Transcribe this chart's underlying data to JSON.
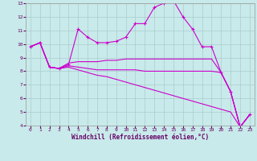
{
  "xlabel": "Windchill (Refroidissement éolien,°C)",
  "bg_color": "#c8eaea",
  "line_color": "#cc00cc",
  "grid_color": "#aacccc",
  "xlim": [
    -0.5,
    23.5
  ],
  "ylim": [
    4,
    13
  ],
  "yticks": [
    4,
    5,
    6,
    7,
    8,
    9,
    10,
    11,
    12,
    13
  ],
  "xticks": [
    0,
    1,
    2,
    3,
    4,
    5,
    6,
    7,
    8,
    9,
    10,
    11,
    12,
    13,
    14,
    15,
    16,
    17,
    18,
    19,
    20,
    21,
    22,
    23
  ],
  "curve1_x": [
    0,
    1,
    2,
    3,
    4,
    5,
    6,
    7,
    8,
    9,
    10,
    11,
    12,
    13,
    14,
    15,
    16,
    17,
    18,
    19,
    20,
    21,
    22,
    23
  ],
  "curve1_y": [
    9.8,
    10.1,
    8.3,
    8.2,
    8.5,
    11.1,
    10.5,
    10.1,
    10.1,
    10.2,
    10.5,
    11.5,
    11.5,
    12.7,
    13.0,
    13.2,
    12.0,
    11.1,
    9.8,
    9.8,
    7.9,
    6.5,
    3.9,
    4.8
  ],
  "curve2_x": [
    0,
    1,
    2,
    3,
    4,
    5,
    6,
    7,
    8,
    9,
    10,
    11,
    12,
    13,
    14,
    15,
    16,
    17,
    18,
    19,
    20,
    21,
    22,
    23
  ],
  "curve2_y": [
    9.8,
    10.1,
    8.3,
    8.2,
    8.6,
    8.7,
    8.7,
    8.7,
    8.8,
    8.8,
    8.9,
    8.9,
    8.9,
    8.9,
    8.9,
    8.9,
    8.9,
    8.9,
    8.9,
    8.9,
    7.9,
    6.5,
    3.9,
    4.8
  ],
  "curve3_x": [
    0,
    1,
    2,
    3,
    4,
    5,
    6,
    7,
    8,
    9,
    10,
    11,
    12,
    13,
    14,
    15,
    16,
    17,
    18,
    19,
    20,
    21,
    22,
    23
  ],
  "curve3_y": [
    9.8,
    10.1,
    8.3,
    8.2,
    8.4,
    8.3,
    8.2,
    8.1,
    8.1,
    8.1,
    8.1,
    8.1,
    8.0,
    8.0,
    8.0,
    8.0,
    8.0,
    8.0,
    8.0,
    8.0,
    7.9,
    6.5,
    3.9,
    4.8
  ],
  "curve4_x": [
    0,
    1,
    2,
    3,
    4,
    5,
    6,
    7,
    8,
    9,
    10,
    11,
    12,
    13,
    14,
    15,
    16,
    17,
    18,
    19,
    20,
    21,
    22,
    23
  ],
  "curve4_y": [
    9.8,
    10.1,
    8.3,
    8.2,
    8.3,
    8.1,
    7.9,
    7.7,
    7.6,
    7.4,
    7.2,
    7.0,
    6.8,
    6.6,
    6.4,
    6.2,
    6.0,
    5.8,
    5.6,
    5.4,
    5.2,
    5.0,
    3.9,
    4.8
  ]
}
